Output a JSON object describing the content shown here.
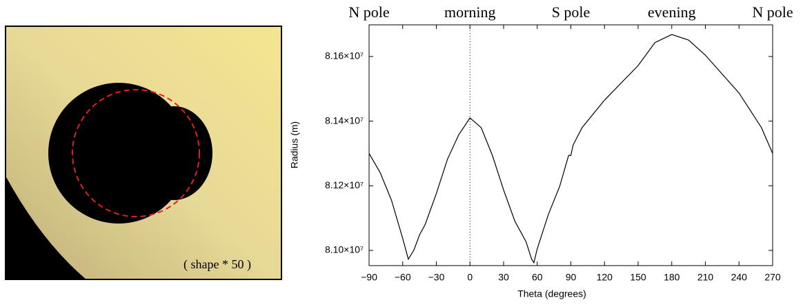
{
  "image": {
    "caption": "( shape * 50 )"
  },
  "chart_data": {
    "type": "line",
    "xlabel": "Theta (degrees)",
    "ylabel": "Radius (m)",
    "x": [
      -90,
      -80,
      -70,
      -60,
      -55,
      -50,
      -45,
      -40,
      -30,
      -20,
      -10,
      0,
      10,
      20,
      30,
      40,
      50,
      55,
      57,
      60,
      70,
      80,
      88,
      90,
      92,
      100,
      120,
      150,
      165,
      180,
      195,
      210,
      240,
      260,
      270
    ],
    "values": [
      81300000,
      81240000,
      81155000,
      81037000,
      80973000,
      81001000,
      81048000,
      81080000,
      81176000,
      81283000,
      81358000,
      81410000,
      81380000,
      81294000,
      81187000,
      81091000,
      81027000,
      80973000,
      80962000,
      81005000,
      81112000,
      81198000,
      81294000,
      81294000,
      81326000,
      81380000,
      81465000,
      81572000,
      81643000,
      81668000,
      81651000,
      81604000,
      81487000,
      81380000,
      81300000
    ],
    "color": "#000000",
    "xlim": [
      -90,
      270
    ],
    "ylim": [
      80953000,
      81698000
    ],
    "xticks": [
      {
        "value": -90,
        "label": "−90"
      },
      {
        "value": -60,
        "label": "−60"
      },
      {
        "value": -30,
        "label": "−30"
      },
      0,
      30,
      60,
      90,
      120,
      150,
      180,
      210,
      240,
      270
    ],
    "yticks": [
      {
        "value": 81000000,
        "label": "8.10×10⁷"
      },
      {
        "value": 81200000,
        "label": "8.12×10⁷"
      },
      {
        "value": 81400000,
        "label": "8.14×10⁷"
      },
      {
        "value": 81600000,
        "label": "8.16×10⁷"
      }
    ],
    "top_labels": [
      {
        "value": -90,
        "label": "N pole"
      },
      {
        "value": 0,
        "label": "morning"
      },
      {
        "value": 90,
        "label": "S pole"
      },
      {
        "value": 180,
        "label": "evening"
      },
      {
        "value": 270,
        "label": "N pole"
      }
    ],
    "vline": 0
  }
}
